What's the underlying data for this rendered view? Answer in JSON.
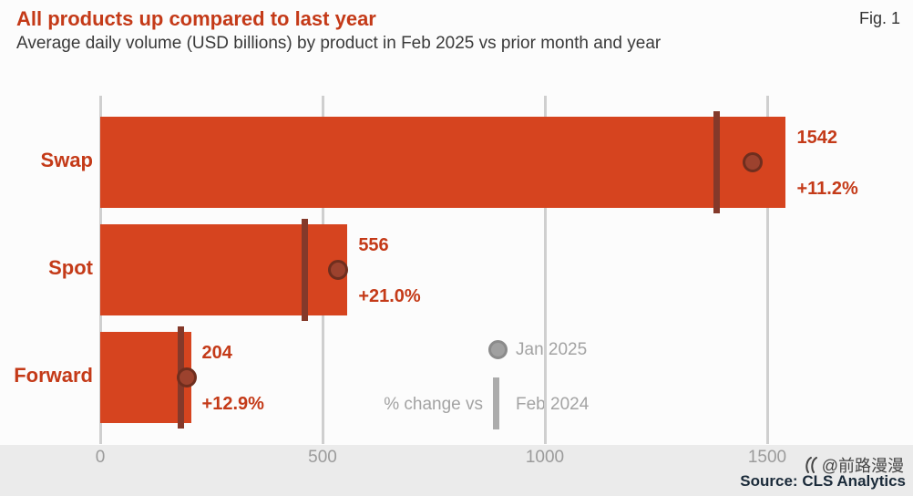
{
  "header": {
    "title": "All products up compared to last year",
    "subtitle": "Average daily volume (USD billions) by product in Feb 2025 vs prior month and year",
    "fig_label": "Fig. 1"
  },
  "chart_data": {
    "type": "bar",
    "orientation": "horizontal",
    "title": "All products up compared to last year",
    "subtitle": "Average daily volume (USD billions) by product in Feb 2025 vs prior month and year",
    "categories": [
      "Swap",
      "Spot",
      "Forward"
    ],
    "series": [
      {
        "name": "Feb 2025",
        "marker": "bar",
        "values": [
          1542,
          556,
          204
        ]
      },
      {
        "name": "Jan 2025",
        "marker": "circle",
        "values": [
          1467,
          535,
          195
        ]
      },
      {
        "name": "Feb 2024",
        "marker": "tick",
        "values": [
          1387,
          460,
          181
        ]
      }
    ],
    "value_labels": [
      "1542",
      "556",
      "204"
    ],
    "pct_change_labels": [
      "+11.2%",
      "+21.0%",
      "+12.9%"
    ],
    "x_ticks": [
      0,
      500,
      1000,
      1500
    ],
    "xlim": [
      0,
      1810
    ],
    "xlabel": "",
    "ylabel": "",
    "grid": "vertical",
    "legend_position": "inside-bottom-center",
    "legend": {
      "jan_label": "Jan 2025",
      "pct_label": "% change vs",
      "feb_label": "Feb 2024"
    }
  },
  "footer": {
    "watermark": "@前路漫漫",
    "source": "Source: CLS Analytics"
  },
  "colors": {
    "bar": "#d6441f",
    "title_red": "#c43a18",
    "tick": "#84392a",
    "dot_fill": "#9c422e",
    "dot_stroke": "#6f2e1e",
    "grid": "#cfcfcf",
    "axis_text": "#9b9b9b",
    "legend_gray": "#a0a0a0",
    "legend_text": "#a3a3a3",
    "band": "#ebebeb",
    "source_text": "#1b2b3a"
  }
}
